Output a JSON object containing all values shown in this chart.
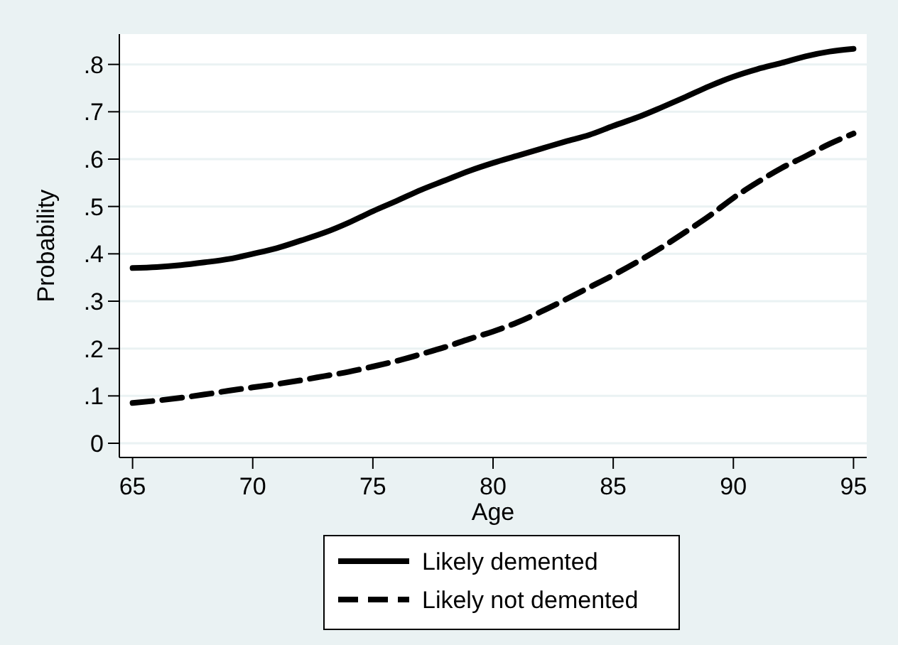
{
  "chart_data": {
    "type": "line",
    "xlabel": "Age",
    "ylabel": "Probability",
    "xlim": [
      64.45,
      95.55
    ],
    "ylim": [
      -0.03,
      0.864
    ],
    "xticks": [
      65,
      70,
      75,
      80,
      85,
      90,
      95
    ],
    "yticks": [
      {
        "value": 0,
        "label": "0"
      },
      {
        "value": 0.1,
        "label": ".1"
      },
      {
        "value": 0.2,
        "label": ".2"
      },
      {
        "value": 0.3,
        "label": ".3"
      },
      {
        "value": 0.4,
        "label": ".4"
      },
      {
        "value": 0.5,
        "label": ".5"
      },
      {
        "value": 0.6,
        "label": ".6"
      },
      {
        "value": 0.7,
        "label": ".7"
      },
      {
        "value": 0.8,
        "label": ".8"
      }
    ],
    "grid": "y",
    "legend": "bottom",
    "marker": "none",
    "x": [
      65,
      66,
      67,
      68,
      69,
      70,
      71,
      72,
      73,
      74,
      75,
      76,
      77,
      78,
      79,
      80,
      81,
      82,
      83,
      84,
      85,
      86,
      87,
      88,
      89,
      90,
      91,
      92,
      93,
      94,
      95
    ],
    "series": [
      {
        "name": "Likely demented",
        "color": "#000000",
        "line_style": "solid",
        "values": [
          0.37,
          0.372,
          0.376,
          0.382,
          0.389,
          0.4,
          0.412,
          0.428,
          0.445,
          0.466,
          0.49,
          0.512,
          0.535,
          0.555,
          0.575,
          0.592,
          0.607,
          0.622,
          0.637,
          0.651,
          0.67,
          0.688,
          0.709,
          0.731,
          0.754,
          0.774,
          0.79,
          0.803,
          0.817,
          0.827,
          0.833
        ]
      },
      {
        "name": "Likely not demented",
        "color": "#000000",
        "line_style": "dashed",
        "values": [
          0.085,
          0.09,
          0.096,
          0.103,
          0.111,
          0.118,
          0.125,
          0.133,
          0.142,
          0.151,
          0.162,
          0.174,
          0.188,
          0.203,
          0.22,
          0.236,
          0.255,
          0.278,
          0.303,
          0.329,
          0.355,
          0.383,
          0.413,
          0.446,
          0.48,
          0.518,
          0.551,
          0.581,
          0.606,
          0.632,
          0.654
        ]
      }
    ]
  }
}
